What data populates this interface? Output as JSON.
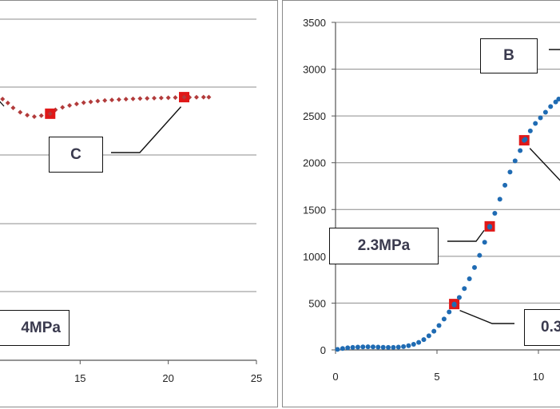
{
  "chart_data": [
    {
      "type": "scatter",
      "panel": "left",
      "x_ticks": [
        "15",
        "20",
        "25"
      ],
      "xlim": [
        10.5,
        25
      ],
      "ylim": [
        0,
        3500
      ],
      "grid": "horizontal",
      "series": [
        {
          "color": "#b23b3b",
          "marker": "diamond",
          "points": [
            [
              10.6,
              2680
            ],
            [
              10.9,
              2640
            ],
            [
              11.2,
              2590
            ],
            [
              11.6,
              2545
            ],
            [
              12.0,
              2515
            ],
            [
              12.4,
              2500
            ],
            [
              12.8,
              2510
            ],
            [
              13.2,
              2540
            ],
            [
              13.6,
              2570
            ],
            [
              14.0,
              2595
            ],
            [
              14.4,
              2615
            ],
            [
              14.8,
              2630
            ],
            [
              15.2,
              2643
            ],
            [
              15.6,
              2652
            ],
            [
              16.0,
              2660
            ],
            [
              16.4,
              2666
            ],
            [
              16.8,
              2671
            ],
            [
              17.2,
              2675
            ],
            [
              17.6,
              2679
            ],
            [
              18.0,
              2682
            ],
            [
              18.4,
              2685
            ],
            [
              18.8,
              2688
            ],
            [
              19.2,
              2690
            ],
            [
              19.6,
              2692
            ],
            [
              20.0,
              2694
            ],
            [
              20.4,
              2696
            ],
            [
              20.8,
              2697
            ],
            [
              21.2,
              2698
            ],
            [
              21.6,
              2699
            ],
            [
              22.0,
              2700
            ],
            [
              22.3,
              2700
            ]
          ]
        }
      ],
      "highlight_points": [
        [
          13.3,
          2530
        ],
        [
          20.9,
          2700
        ]
      ],
      "annotations": [
        {
          "label": "C",
          "point": [
            20.9,
            2700
          ]
        },
        {
          "label": "4MPa",
          "point": null
        }
      ]
    },
    {
      "type": "scatter",
      "panel": "right",
      "x_ticks": [
        "0",
        "5",
        "10"
      ],
      "y_ticks": [
        "0",
        "500",
        "1000",
        "1500",
        "2000",
        "2500",
        "3000",
        "3500"
      ],
      "xlim": [
        0,
        11
      ],
      "ylim": [
        0,
        3500
      ],
      "grid": "horizontal",
      "series": [
        {
          "color": "#1f6bb3",
          "marker": "circle",
          "points": [
            [
              0.1,
              5
            ],
            [
              0.35,
              15
            ],
            [
              0.6,
              22
            ],
            [
              0.85,
              27
            ],
            [
              1.1,
              30
            ],
            [
              1.35,
              32
            ],
            [
              1.6,
              33
            ],
            [
              1.85,
              32
            ],
            [
              2.1,
              30
            ],
            [
              2.35,
              28
            ],
            [
              2.6,
              27
            ],
            [
              2.85,
              27
            ],
            [
              3.1,
              30
            ],
            [
              3.35,
              35
            ],
            [
              3.6,
              45
            ],
            [
              3.85,
              60
            ],
            [
              4.1,
              80
            ],
            [
              4.35,
              110
            ],
            [
              4.6,
              150
            ],
            [
              4.85,
              200
            ],
            [
              5.1,
              260
            ],
            [
              5.35,
              330
            ],
            [
              5.6,
              405
            ],
            [
              5.85,
              480
            ],
            [
              6.1,
              560
            ],
            [
              6.35,
              655
            ],
            [
              6.6,
              760
            ],
            [
              6.85,
              880
            ],
            [
              7.1,
              1010
            ],
            [
              7.35,
              1150
            ],
            [
              7.6,
              1310
            ],
            [
              7.85,
              1460
            ],
            [
              8.1,
              1610
            ],
            [
              8.35,
              1760
            ],
            [
              8.6,
              1900
            ],
            [
              8.85,
              2020
            ],
            [
              9.1,
              2130
            ],
            [
              9.35,
              2250
            ],
            [
              9.6,
              2340
            ],
            [
              9.85,
              2420
            ],
            [
              10.1,
              2480
            ],
            [
              10.35,
              2540
            ],
            [
              10.6,
              2600
            ],
            [
              10.85,
              2650
            ],
            [
              11.0,
              2680
            ]
          ]
        }
      ],
      "highlight_points": [
        [
          5.85,
          490
        ],
        [
          7.6,
          1320
        ],
        [
          9.3,
          2240
        ]
      ],
      "annotations": [
        {
          "label": "B",
          "point": null
        },
        {
          "label": "2.3MPa",
          "point": [
            7.6,
            1320
          ]
        },
        {
          "label": "0.3",
          "point": [
            5.85,
            490
          ]
        }
      ]
    }
  ]
}
